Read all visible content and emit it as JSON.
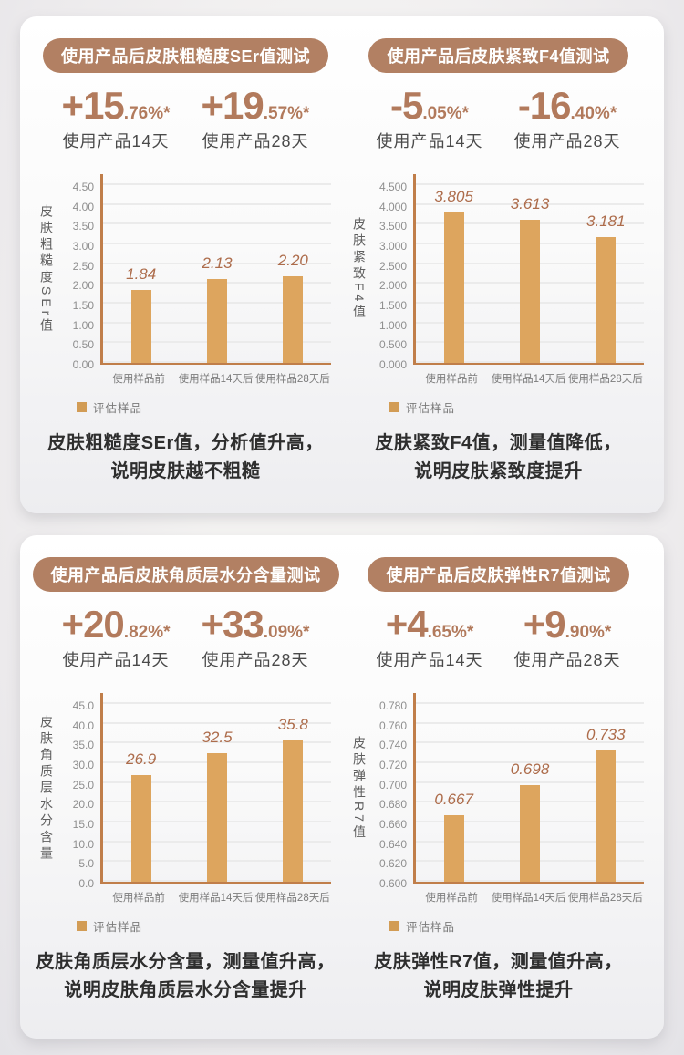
{
  "colors": {
    "pill_bg": "#b28063",
    "stat": "#b27a5c",
    "bar": "#dda55e",
    "axis": "#c07e4a",
    "value_label": "#ad6c4b",
    "legend_swatch": "#d29c55"
  },
  "cards": [
    {
      "panels": [
        {
          "header": "使用产品后皮肤粗糙度SEr值测试",
          "stats": [
            {
              "big": "+15",
              "small": ".76%*",
              "label": "使用产品14天"
            },
            {
              "big": "+19",
              "small": ".57%*",
              "label": "使用产品28天"
            }
          ],
          "legend_label": "评估样品",
          "caption_line1": "皮肤粗糙度SEr值，分析值升高，",
          "caption_line2": "说明皮肤越不粗糙"
        },
        {
          "header": "使用产品后皮肤紧致F4值测试",
          "stats": [
            {
              "big": "-5",
              "small": ".05%*",
              "label": "使用产品14天"
            },
            {
              "big": "-16",
              "small": ".40%*",
              "label": "使用产品28天"
            }
          ],
          "legend_label": "评估样品",
          "caption_line1": "皮肤紧致F4值，测量值降低，",
          "caption_line2": "说明皮肤紧致度提升"
        }
      ]
    },
    {
      "panels": [
        {
          "header": "使用产品后皮肤角质层水分含量测试",
          "stats": [
            {
              "big": "+20",
              "small": ".82%*",
              "label": "使用产品14天"
            },
            {
              "big": "+33",
              "small": ".09%*",
              "label": "使用产品28天"
            }
          ],
          "legend_label": "评估样品",
          "caption_line1": "皮肤角质层水分含量，测量值升高，",
          "caption_line2": "说明皮肤角质层水分含量提升"
        },
        {
          "header": "使用产品后皮肤弹性R7值测试",
          "stats": [
            {
              "big": "+4",
              "small": ".65%*",
              "label": "使用产品14天"
            },
            {
              "big": "+9",
              "small": ".90%*",
              "label": "使用产品28天"
            }
          ],
          "legend_label": "评估样品",
          "caption_line1": "皮肤弹性R7值，测量值升高，",
          "caption_line2": "说明皮肤弹性提升"
        }
      ]
    }
  ],
  "chart_data": [
    {
      "type": "bar",
      "title": "使用产品后皮肤粗糙度SEr值测试",
      "ylabel": "皮肤粗糙度SEr值",
      "categories": [
        "使用样品前",
        "使用样品14天后",
        "使用样品28天后"
      ],
      "values": [
        1.84,
        2.13,
        2.2
      ],
      "value_labels": [
        "1.84",
        "2.13",
        "2.20"
      ],
      "ticks": [
        "4.50",
        "4.00",
        "3.50",
        "3.00",
        "2.50",
        "2.00",
        "1.50",
        "1.00",
        "0.50",
        "0.00"
      ],
      "ymin": 0,
      "ymax": 4.5,
      "ylim": [
        0,
        4.5
      ],
      "grid": true,
      "legend": [
        "评估样品"
      ],
      "legend_position": "bottom-left"
    },
    {
      "type": "bar",
      "title": "使用产品后皮肤紧致F4值测试",
      "ylabel": "皮肤紧致F4值",
      "categories": [
        "使用样品前",
        "使用样品14天后",
        "使用样品28天后"
      ],
      "values": [
        3.805,
        3.613,
        3.181
      ],
      "value_labels": [
        "3.805",
        "3.613",
        "3.181"
      ],
      "ticks": [
        "4.500",
        "4.000",
        "3.500",
        "3.000",
        "2.500",
        "2.000",
        "1.500",
        "1.000",
        "0.500",
        "0.000"
      ],
      "ymin": 0,
      "ymax": 4.5,
      "ylim": [
        0,
        4.5
      ],
      "grid": true,
      "legend": [
        "评估样品"
      ],
      "legend_position": "bottom-left"
    },
    {
      "type": "bar",
      "title": "使用产品后皮肤角质层水分含量测试",
      "ylabel": "皮肤角质层水分含量",
      "categories": [
        "使用样品前",
        "使用样品14天后",
        "使用样品28天后"
      ],
      "values": [
        26.9,
        32.5,
        35.8
      ],
      "value_labels": [
        "26.9",
        "32.5",
        "35.8"
      ],
      "ticks": [
        "45.0",
        "40.0",
        "35.0",
        "30.0",
        "25.0",
        "20.0",
        "15.0",
        "10.0",
        "5.0",
        "0.0"
      ],
      "ymin": 0,
      "ymax": 45,
      "ylim": [
        0,
        45
      ],
      "grid": true,
      "legend": [
        "评估样品"
      ],
      "legend_position": "bottom-left"
    },
    {
      "type": "bar",
      "title": "使用产品后皮肤弹性R7值测试",
      "ylabel": "皮肤弹性R7值",
      "categories": [
        "使用样品前",
        "使用样品14天后",
        "使用样品28天后"
      ],
      "values": [
        0.667,
        0.698,
        0.733
      ],
      "value_labels": [
        "0.667",
        "0.698",
        "0.733"
      ],
      "ticks": [
        "0.780",
        "0.760",
        "0.740",
        "0.720",
        "0.700",
        "0.680",
        "0.660",
        "0.640",
        "0.620",
        "0.600"
      ],
      "ymin": 0.6,
      "ymax": 0.78,
      "ylim": [
        0.6,
        0.78
      ],
      "grid": true,
      "legend": [
        "评估样品"
      ],
      "legend_position": "bottom-left"
    }
  ]
}
